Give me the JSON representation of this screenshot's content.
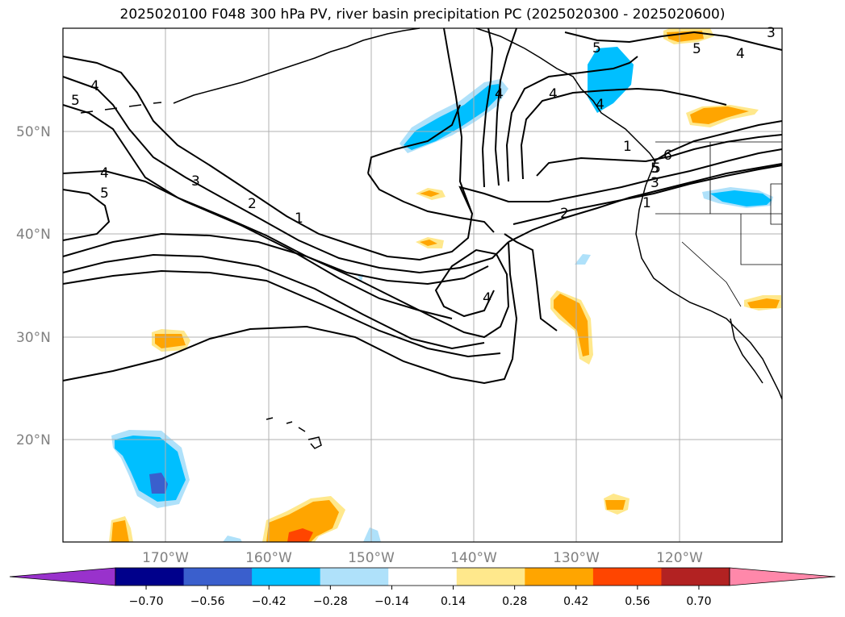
{
  "title": "2025020100 F048 300 hPa PV, river basin precipitation PC (2025020300 - 2025020600)",
  "map": {
    "projection": "cylindrical",
    "lon_range": [
      -180,
      -110
    ],
    "lat_range": [
      10,
      60
    ],
    "grid": true,
    "lat_ticks": [
      "50°N",
      "40°N",
      "30°N",
      "20°N"
    ],
    "lon_ticks": [
      "170°W",
      "160°W",
      "150°W",
      "140°W",
      "130°W",
      "120°W"
    ],
    "pv_contour_labels": [
      "5",
      "4",
      "5",
      "4",
      "3",
      "2",
      "1",
      "4",
      "5",
      "4",
      "5",
      "3",
      "5",
      "4",
      "1",
      "6",
      "5",
      "3",
      "2",
      "1",
      "4",
      "4"
    ]
  },
  "colorbar": {
    "ticks": [
      "−0.70",
      "−0.56",
      "−0.42",
      "−0.28",
      "−0.14",
      "0.14",
      "0.28",
      "0.42",
      "0.56",
      "0.70"
    ],
    "colors": [
      "#9932cc",
      "#00008b",
      "#3a5fcd",
      "#00bfff",
      "#afe1fa",
      "#ffffff",
      "#ffe88c",
      "#ffa500",
      "#ff4500",
      "#b22222",
      "#ff88aa"
    ],
    "extend": "both"
  }
}
